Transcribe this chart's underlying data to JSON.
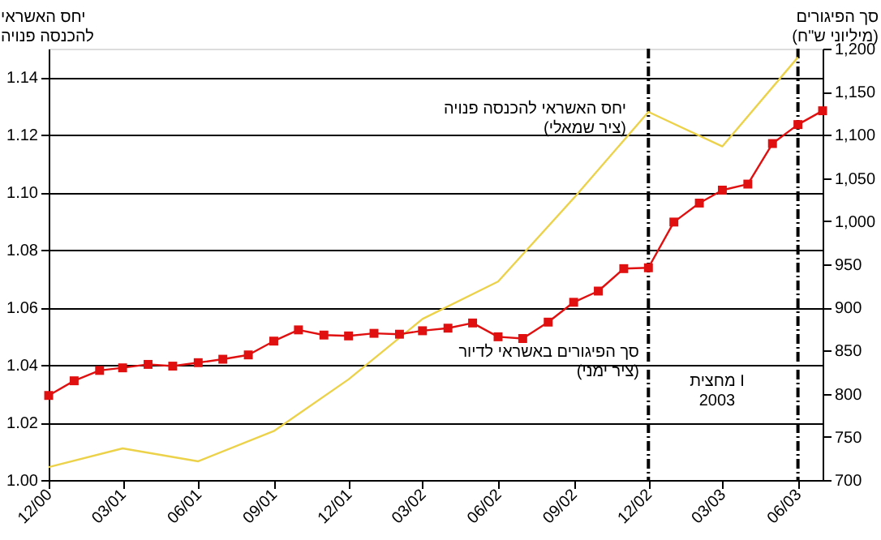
{
  "chart_data": {
    "type": "line",
    "ylabel": "יחס האשראי\nלהכנסה פנויה",
    "y2label": "סך הפיגורים\n(מיליוני ש\"ח)",
    "annotations": [
      "מחצית I\n2003"
    ],
    "xlim": [
      "2000-12",
      "2003-07"
    ],
    "xticks": [
      {
        "value": "2000-12",
        "label": "12/00"
      },
      {
        "value": "2001-03",
        "label": "03/01"
      },
      {
        "value": "2001-06",
        "label": "06/01"
      },
      {
        "value": "2001-09",
        "label": "09/01"
      },
      {
        "value": "2001-12",
        "label": "12/01"
      },
      {
        "value": "2002-03",
        "label": "03/02"
      },
      {
        "value": "2002-06",
        "label": "06/02"
      },
      {
        "value": "2002-09",
        "label": "09/02"
      },
      {
        "value": "2002-12",
        "label": "12/02"
      },
      {
        "value": "2003-03",
        "label": "03/03"
      },
      {
        "value": "2003-06",
        "label": "06/03"
      }
    ],
    "ylim": [
      1.0,
      1.15
    ],
    "yticks": [
      {
        "value": 1.0,
        "label": "1.00"
      },
      1.02,
      1.04,
      1.06,
      1.08,
      {
        "value": 1.1,
        "label": "1.10"
      },
      1.12,
      1.14
    ],
    "y2lim": [
      700,
      1200
    ],
    "y2ticks": [
      700,
      750,
      800,
      850,
      900,
      950,
      {
        "value": 1000,
        "label": "1,000"
      },
      {
        "value": 1050,
        "label": "1,050"
      },
      {
        "value": 1100,
        "label": "1,100"
      },
      {
        "value": 1150,
        "label": "1,150"
      },
      {
        "value": 1200,
        "label": "1,200"
      }
    ],
    "grid": "y",
    "legend": false,
    "ref_lines": [
      {
        "axis": "x",
        "value": "2002-12",
        "label": null,
        "color": "#000000",
        "line_style": "dashed"
      },
      {
        "axis": "x",
        "value": "2003-06",
        "label": null,
        "color": "#000000",
        "line_style": "dashed"
      }
    ],
    "series": [
      {
        "name": "יחס האשראי להכנסה פנויה\n(ציר שמאלי)",
        "color": "#ecd24a",
        "marker": "none",
        "x": [
          "2000-12",
          "2001-03",
          "2001-06",
          "2001-09",
          "2001-12",
          "2002-03",
          "2002-06",
          "2002-09",
          "2002-12",
          "2003-03",
          "2003-06"
        ],
        "values": [
          1.0045,
          1.011,
          1.0065,
          1.017,
          1.035,
          1.056,
          1.069,
          1.098,
          1.128,
          1.116,
          1.147
        ]
      },
      {
        "name": "סך הפיגורים באשראי לדיור\n(ציר ימני)",
        "axis": "y2",
        "color": "#e01010",
        "marker": "square",
        "x": [
          "2000-12",
          "2001-01",
          "2001-02",
          "2001-03",
          "2001-04",
          "2001-05",
          "2001-06",
          "2001-07",
          "2001-08",
          "2001-09",
          "2001-10",
          "2001-11",
          "2001-12",
          "2002-01",
          "2002-02",
          "2002-03",
          "2002-04",
          "2002-05",
          "2002-06",
          "2002-07",
          "2002-08",
          "2002-09",
          "2002-10",
          "2002-11",
          "2002-12",
          "2003-01",
          "2003-02",
          "2003-03",
          "2003-04",
          "2003-05",
          "2003-06",
          "2003-07"
        ],
        "values": [
          798,
          815,
          827,
          830,
          834,
          832,
          836,
          840,
          845,
          861,
          874,
          868,
          867,
          870,
          869,
          873,
          876,
          882,
          866,
          864,
          883,
          906,
          919,
          945,
          946,
          999,
          1021,
          1036,
          1043,
          1090,
          1112,
          1128
        ]
      }
    ]
  }
}
